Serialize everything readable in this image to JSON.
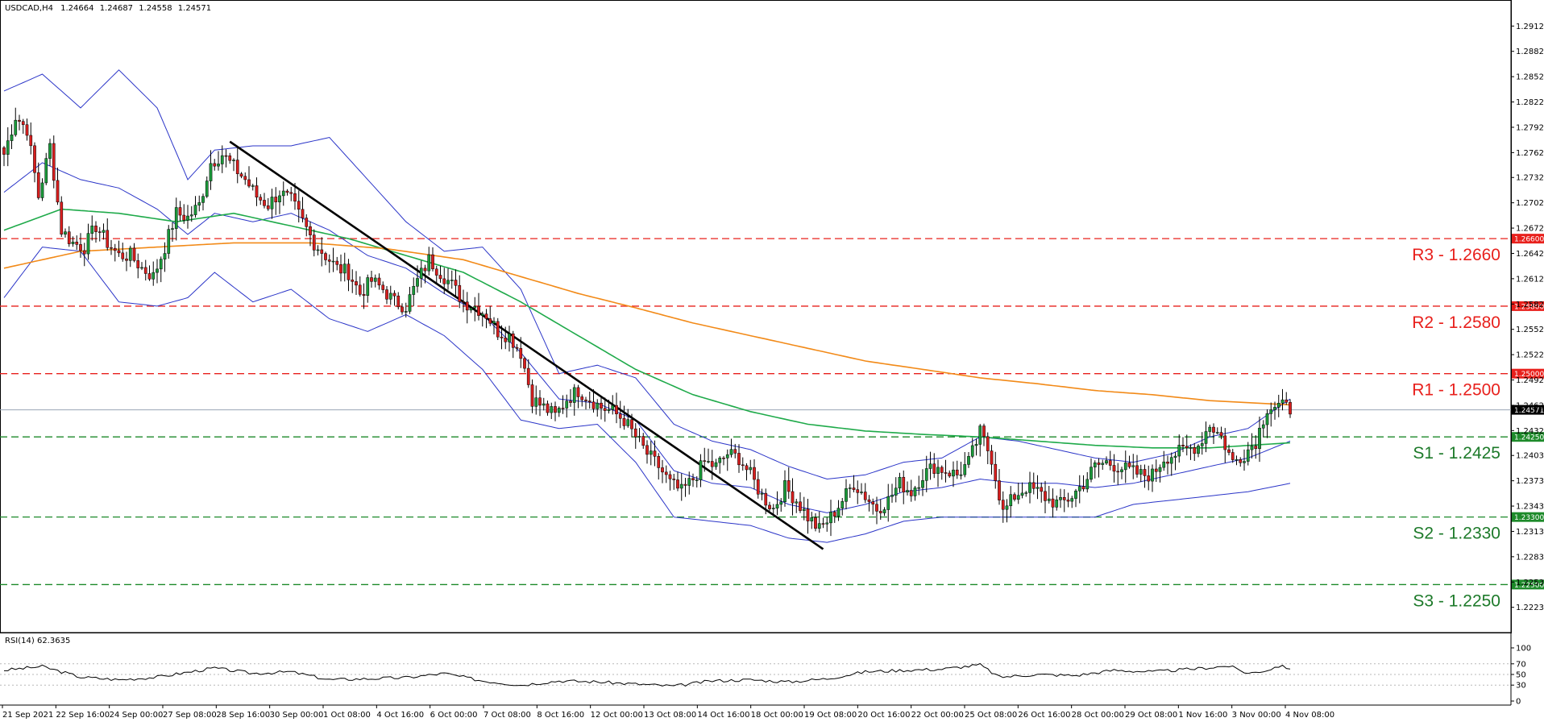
{
  "chart_data": {
    "type": "candlestick",
    "symbol_header": "USDCAD,H4",
    "ohlc_header": [
      "1.24664",
      "1.24687",
      "1.24558",
      "1.24571"
    ],
    "y_range": [
      1.2195,
      1.294
    ],
    "price_ticks": [
      "1.29120",
      "1.28820",
      "1.28520",
      "1.28220",
      "1.27920",
      "1.27620",
      "1.27325",
      "1.27025",
      "1.26725",
      "1.26425",
      "1.26125",
      "1.25825",
      "1.25525",
      "1.25225",
      "1.24925",
      "1.24625",
      "1.24325",
      "1.24030",
      "1.23730",
      "1.23430",
      "1.23130",
      "1.22830",
      "1.22530",
      "1.22230"
    ],
    "time_labels": [
      "21 Sep 2021",
      "22 Sep 16:00",
      "24 Sep 00:00",
      "27 Sep 08:00",
      "28 Sep 16:00",
      "30 Sep 00:00",
      "1 Oct 08:00",
      "4 Oct 16:00",
      "6 Oct 00:00",
      "7 Oct 08:00",
      "8 Oct 16:00",
      "12 Oct 00:00",
      "13 Oct 08:00",
      "14 Oct 16:00",
      "18 Oct 00:00",
      "19 Oct 08:00",
      "20 Oct 16:00",
      "22 Oct 00:00",
      "25 Oct 08:00",
      "26 Oct 16:00",
      "28 Oct 00:00",
      "29 Oct 08:00",
      "1 Nov 16:00",
      "3 Nov 00:00",
      "4 Nov 08:00"
    ],
    "levels": [
      {
        "label": "R3 - 1.2660",
        "tag": "1.26600",
        "value": 1.266,
        "kind": "resistance"
      },
      {
        "label": "R2 - 1.2580",
        "tag": "1.25800",
        "value": 1.258,
        "kind": "resistance"
      },
      {
        "label": "R1 - 1.2500",
        "tag": "1.25000",
        "value": 1.25,
        "kind": "resistance"
      },
      {
        "label": "S1 - 1.2425",
        "tag": "1.24250",
        "value": 1.2425,
        "kind": "support"
      },
      {
        "label": "S2 - 1.2330",
        "tag": "1.23300",
        "value": 1.233,
        "kind": "support"
      },
      {
        "label": "S3 - 1.2250",
        "tag": "1.22500",
        "value": 1.225,
        "kind": "support"
      }
    ],
    "current_price": {
      "tag": "1.24571",
      "value": 1.24571
    },
    "close_path": [
      [
        0,
        1.276
      ],
      [
        3,
        1.2805
      ],
      [
        6,
        1.279
      ],
      [
        9,
        1.271
      ],
      [
        12,
        1.277
      ],
      [
        15,
        1.267
      ],
      [
        18,
        1.2655
      ],
      [
        21,
        1.265
      ],
      [
        24,
        1.2675
      ],
      [
        27,
        1.2655
      ],
      [
        30,
        1.264
      ],
      [
        33,
        1.264
      ],
      [
        36,
        1.2625
      ],
      [
        39,
        1.2615
      ],
      [
        42,
        1.265
      ],
      [
        45,
        1.269
      ],
      [
        48,
        1.2685
      ],
      [
        51,
        1.27
      ],
      [
        54,
        1.275
      ],
      [
        57,
        1.276
      ],
      [
        60,
        1.2745
      ],
      [
        63,
        1.273
      ],
      [
        66,
        1.271
      ],
      [
        69,
        1.27
      ],
      [
        72,
        1.2715
      ],
      [
        75,
        1.2705
      ],
      [
        78,
        1.268
      ],
      [
        81,
        1.2655
      ],
      [
        84,
        1.264
      ],
      [
        87,
        1.2625
      ],
      [
        90,
        1.262
      ],
      [
        93,
        1.2595
      ],
      [
        96,
        1.261
      ],
      [
        99,
        1.26
      ],
      [
        102,
        1.2585
      ],
      [
        105,
        1.258
      ],
      [
        108,
        1.261
      ],
      [
        111,
        1.2635
      ],
      [
        114,
        1.262
      ],
      [
        117,
        1.2605
      ],
      [
        120,
        1.2585
      ],
      [
        123,
        1.258
      ],
      [
        126,
        1.257
      ],
      [
        129,
        1.255
      ],
      [
        132,
        1.2545
      ],
      [
        135,
        1.2525
      ],
      [
        138,
        1.247
      ],
      [
        141,
        1.246
      ],
      [
        144,
        1.245
      ],
      [
        147,
        1.247
      ],
      [
        150,
        1.248
      ],
      [
        153,
        1.247
      ],
      [
        156,
        1.246
      ],
      [
        159,
        1.2455
      ],
      [
        162,
        1.2445
      ],
      [
        165,
        1.2425
      ],
      [
        168,
        1.2405
      ],
      [
        171,
        1.239
      ],
      [
        174,
        1.237
      ],
      [
        177,
        1.236
      ],
      [
        180,
        1.2375
      ],
      [
        183,
        1.2395
      ],
      [
        186,
        1.239
      ],
      [
        189,
        1.2405
      ],
      [
        192,
        1.24
      ],
      [
        195,
        1.238
      ],
      [
        198,
        1.2355
      ],
      [
        201,
        1.234
      ],
      [
        204,
        1.2365
      ],
      [
        207,
        1.235
      ],
      [
        210,
        1.233
      ],
      [
        213,
        1.2315
      ],
      [
        216,
        1.233
      ],
      [
        219,
        1.235
      ],
      [
        222,
        1.237
      ],
      [
        225,
        1.2355
      ],
      [
        228,
        1.234
      ],
      [
        231,
        1.235
      ],
      [
        234,
        1.237
      ],
      [
        237,
        1.236
      ],
      [
        240,
        1.238
      ],
      [
        243,
        1.239
      ],
      [
        246,
        1.2385
      ],
      [
        249,
        1.238
      ],
      [
        252,
        1.2395
      ],
      [
        255,
        1.243
      ],
      [
        258,
        1.24
      ],
      [
        261,
        1.2335
      ],
      [
        264,
        1.2355
      ],
      [
        267,
        1.2365
      ],
      [
        270,
        1.236
      ],
      [
        273,
        1.235
      ],
      [
        276,
        1.2345
      ],
      [
        279,
        1.2355
      ],
      [
        282,
        1.237
      ],
      [
        285,
        1.239
      ],
      [
        288,
        1.2395
      ],
      [
        291,
        1.239
      ],
      [
        294,
        1.2385
      ],
      [
        297,
        1.238
      ],
      [
        300,
        1.238
      ],
      [
        303,
        1.24
      ],
      [
        306,
        1.2405
      ],
      [
        309,
        1.241
      ],
      [
        312,
        1.2415
      ],
      [
        315,
        1.244
      ],
      [
        318,
        1.2425
      ],
      [
        321,
        1.2395
      ],
      [
        324,
        1.2405
      ],
      [
        327,
        1.242
      ],
      [
        330,
        1.246
      ],
      [
        333,
        1.2462
      ],
      [
        336,
        1.2458
      ]
    ],
    "indicators": [
      {
        "name": "Bollinger upper",
        "color": "#2b35c8",
        "points": [
          [
            0,
            1.2835
          ],
          [
            10,
            1.2855
          ],
          [
            20,
            1.2815
          ],
          [
            30,
            1.286
          ],
          [
            40,
            1.2815
          ],
          [
            48,
            1.273
          ],
          [
            55,
            1.2765
          ],
          [
            65,
            1.277
          ],
          [
            75,
            1.277
          ],
          [
            85,
            1.278
          ],
          [
            95,
            1.273
          ],
          [
            105,
            1.268
          ],
          [
            115,
            1.2645
          ],
          [
            125,
            1.265
          ],
          [
            135,
            1.26
          ],
          [
            145,
            1.25
          ],
          [
            155,
            1.251
          ],
          [
            165,
            1.2495
          ],
          [
            175,
            1.244
          ],
          [
            185,
            1.242
          ],
          [
            195,
            1.241
          ],
          [
            205,
            1.239
          ],
          [
            215,
            1.2375
          ],
          [
            225,
            1.238
          ],
          [
            235,
            1.2395
          ],
          [
            245,
            1.24
          ],
          [
            255,
            1.2425
          ],
          [
            265,
            1.242
          ],
          [
            275,
            1.241
          ],
          [
            285,
            1.24
          ],
          [
            295,
            1.2395
          ],
          [
            305,
            1.2405
          ],
          [
            315,
            1.2425
          ],
          [
            325,
            1.2435
          ],
          [
            336,
            1.247
          ]
        ]
      },
      {
        "name": "Bollinger lower",
        "color": "#2b35c8",
        "points": [
          [
            0,
            1.259
          ],
          [
            10,
            1.265
          ],
          [
            20,
            1.2645
          ],
          [
            30,
            1.2585
          ],
          [
            40,
            1.258
          ],
          [
            48,
            1.259
          ],
          [
            55,
            1.262
          ],
          [
            65,
            1.2585
          ],
          [
            75,
            1.26
          ],
          [
            85,
            1.2565
          ],
          [
            95,
            1.255
          ],
          [
            105,
            1.257
          ],
          [
            115,
            1.2545
          ],
          [
            125,
            1.2505
          ],
          [
            135,
            1.2445
          ],
          [
            145,
            1.2435
          ],
          [
            155,
            1.244
          ],
          [
            165,
            1.2395
          ],
          [
            175,
            1.233
          ],
          [
            185,
            1.2325
          ],
          [
            195,
            1.232
          ],
          [
            205,
            1.2305
          ],
          [
            215,
            1.23
          ],
          [
            225,
            1.231
          ],
          [
            235,
            1.2325
          ],
          [
            245,
            1.233
          ],
          [
            255,
            1.233
          ],
          [
            265,
            1.233
          ],
          [
            275,
            1.233
          ],
          [
            285,
            1.233
          ],
          [
            295,
            1.2345
          ],
          [
            305,
            1.235
          ],
          [
            315,
            1.2355
          ],
          [
            325,
            1.236
          ],
          [
            336,
            1.237
          ]
        ]
      },
      {
        "name": "Bollinger middle",
        "color": "#2b35c8",
        "points": [
          [
            0,
            1.2715
          ],
          [
            10,
            1.275
          ],
          [
            20,
            1.273
          ],
          [
            30,
            1.272
          ],
          [
            40,
            1.2695
          ],
          [
            48,
            1.2665
          ],
          [
            55,
            1.269
          ],
          [
            65,
            1.268
          ],
          [
            75,
            1.269
          ],
          [
            85,
            1.267
          ],
          [
            95,
            1.264
          ],
          [
            105,
            1.2625
          ],
          [
            115,
            1.2595
          ],
          [
            125,
            1.257
          ],
          [
            135,
            1.2525
          ],
          [
            145,
            1.247
          ],
          [
            155,
            1.2465
          ],
          [
            165,
            1.2445
          ],
          [
            175,
            1.2385
          ],
          [
            185,
            1.237
          ],
          [
            195,
            1.2365
          ],
          [
            205,
            1.2345
          ],
          [
            215,
            1.2335
          ],
          [
            225,
            1.2345
          ],
          [
            235,
            1.236
          ],
          [
            245,
            1.2365
          ],
          [
            255,
            1.2375
          ],
          [
            265,
            1.237
          ],
          [
            275,
            1.237
          ],
          [
            285,
            1.2365
          ],
          [
            295,
            1.237
          ],
          [
            305,
            1.238
          ],
          [
            315,
            1.239
          ],
          [
            325,
            1.24
          ],
          [
            336,
            1.242
          ]
        ]
      },
      {
        "name": "MA green",
        "color": "#1faa4a",
        "points": [
          [
            0,
            1.267
          ],
          [
            15,
            1.2695
          ],
          [
            30,
            1.269
          ],
          [
            45,
            1.268
          ],
          [
            60,
            1.269
          ],
          [
            75,
            1.2675
          ],
          [
            90,
            1.266
          ],
          [
            105,
            1.264
          ],
          [
            120,
            1.262
          ],
          [
            135,
            1.2585
          ],
          [
            150,
            1.2545
          ],
          [
            165,
            1.2505
          ],
          [
            180,
            1.2475
          ],
          [
            195,
            1.2455
          ],
          [
            210,
            1.244
          ],
          [
            225,
            1.2432
          ],
          [
            240,
            1.2428
          ],
          [
            255,
            1.2425
          ],
          [
            270,
            1.242
          ],
          [
            285,
            1.2415
          ],
          [
            300,
            1.2412
          ],
          [
            315,
            1.2412
          ],
          [
            336,
            1.2418
          ]
        ]
      },
      {
        "name": "MA orange",
        "color": "#f28a18",
        "points": [
          [
            0,
            1.2625
          ],
          [
            20,
            1.2645
          ],
          [
            40,
            1.265
          ],
          [
            60,
            1.2655
          ],
          [
            80,
            1.2655
          ],
          [
            100,
            1.2648
          ],
          [
            120,
            1.2635
          ],
          [
            135,
            1.2615
          ],
          [
            150,
            1.2595
          ],
          [
            165,
            1.2578
          ],
          [
            180,
            1.256
          ],
          [
            195,
            1.2545
          ],
          [
            210,
            1.253
          ],
          [
            225,
            1.2515
          ],
          [
            240,
            1.2505
          ],
          [
            255,
            1.2495
          ],
          [
            270,
            1.2488
          ],
          [
            285,
            1.248
          ],
          [
            300,
            1.2475
          ],
          [
            315,
            1.2468
          ],
          [
            336,
            1.2463
          ]
        ]
      },
      {
        "name": "Trend line",
        "color": "#000000",
        "points": [
          [
            59,
            1.2775
          ],
          [
            214,
            1.2292
          ]
        ]
      }
    ],
    "rsi": {
      "header": "RSI(14) 62.3635",
      "levels": [
        "100",
        "70",
        "50",
        "30",
        "0"
      ],
      "values": [
        [
          0,
          58
        ],
        [
          10,
          65
        ],
        [
          20,
          45
        ],
        [
          30,
          40
        ],
        [
          40,
          45
        ],
        [
          55,
          62
        ],
        [
          65,
          52
        ],
        [
          75,
          55
        ],
        [
          85,
          40
        ],
        [
          95,
          42
        ],
        [
          105,
          44
        ],
        [
          115,
          52
        ],
        [
          125,
          38
        ],
        [
          135,
          30
        ],
        [
          145,
          38
        ],
        [
          155,
          36
        ],
        [
          165,
          32
        ],
        [
          175,
          28
        ],
        [
          185,
          38
        ],
        [
          195,
          40
        ],
        [
          205,
          36
        ],
        [
          215,
          42
        ],
        [
          225,
          55
        ],
        [
          235,
          58
        ],
        [
          245,
          60
        ],
        [
          255,
          68
        ],
        [
          260,
          45
        ],
        [
          270,
          50
        ],
        [
          280,
          48
        ],
        [
          290,
          58
        ],
        [
          300,
          55
        ],
        [
          310,
          60
        ],
        [
          320,
          66
        ],
        [
          325,
          52
        ],
        [
          330,
          58
        ],
        [
          333,
          66
        ],
        [
          336,
          62
        ]
      ]
    }
  }
}
